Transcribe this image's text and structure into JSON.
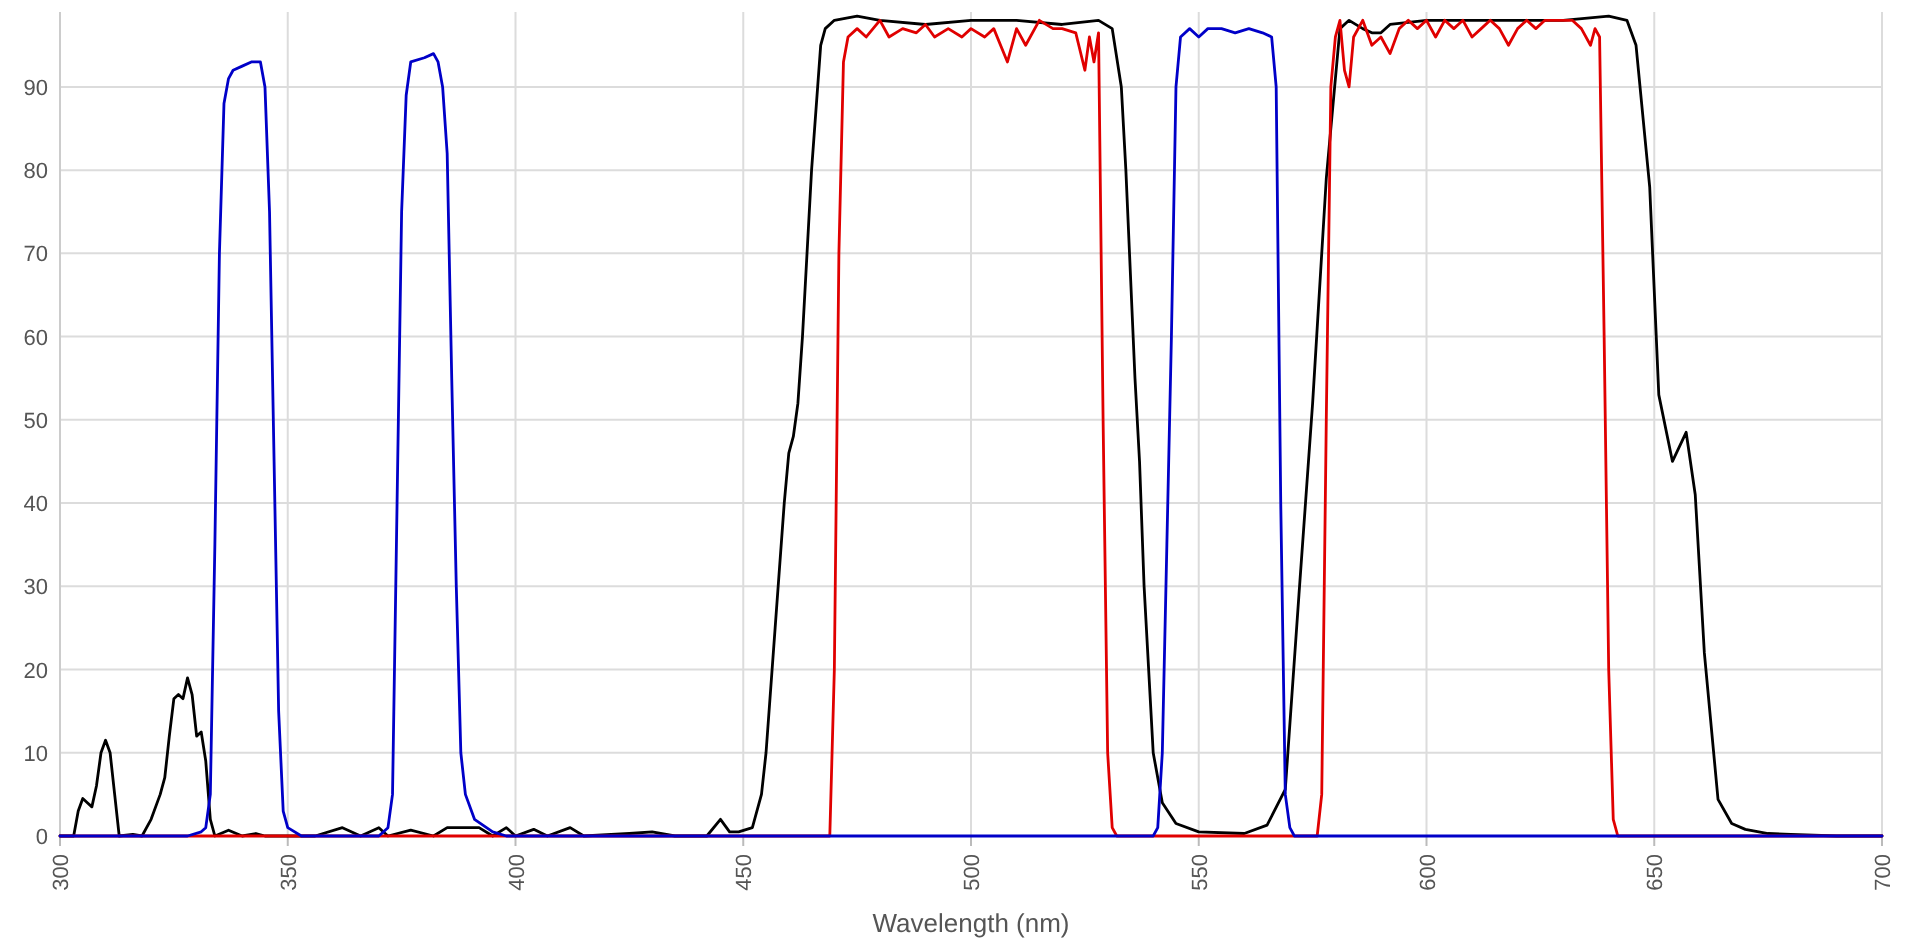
{
  "chart_data": {
    "type": "line",
    "xlabel": "Wavelength (nm)",
    "xlim": [
      300,
      700
    ],
    "xticks": [
      300,
      350,
      400,
      450,
      500,
      550,
      600,
      650,
      700
    ],
    "ylim": [
      0,
      99
    ],
    "yticks": [
      0,
      10,
      20,
      30,
      40,
      50,
      60,
      70,
      80,
      90
    ],
    "grid": true,
    "marker": "none",
    "line_style": "solid",
    "series": [
      {
        "color": "#000000",
        "x": [
          300,
          303,
          304,
          305,
          306,
          307,
          308,
          309,
          310,
          311,
          312,
          313,
          316,
          318,
          320,
          322,
          323,
          324,
          325,
          326,
          327,
          328,
          329,
          330,
          331,
          332,
          333,
          334,
          337,
          340,
          343,
          345,
          356,
          362,
          366,
          370,
          372,
          377,
          382,
          385,
          392,
          395,
          398,
          400,
          404,
          407,
          412,
          415,
          425,
          430,
          435,
          442,
          445,
          447,
          449,
          452,
          454,
          455,
          457,
          459,
          460,
          461,
          462,
          463,
          465,
          467,
          468,
          470,
          475,
          480,
          490,
          500,
          510,
          520,
          528,
          531,
          533,
          534,
          536,
          537,
          538,
          540,
          542,
          545,
          550,
          560,
          565,
          569,
          572,
          575,
          578,
          581,
          583,
          586,
          588,
          590,
          592,
          600,
          610,
          620,
          630,
          640,
          644,
          646,
          649,
          651,
          654,
          657,
          659,
          661,
          664,
          667,
          670,
          675,
          680,
          690,
          700
        ],
        "values": [
          0,
          0,
          3,
          4.5,
          4,
          3.5,
          6,
          10,
          11.5,
          10,
          5,
          0,
          0.2,
          0,
          2,
          5,
          7,
          12,
          16.5,
          17,
          16.5,
          19,
          17,
          12,
          12.5,
          9,
          2,
          0,
          0.7,
          0,
          0.3,
          0,
          0,
          1,
          0,
          1,
          0,
          0.7,
          0,
          1,
          1,
          0,
          1,
          0,
          0.8,
          0,
          1,
          0,
          0.3,
          0.5,
          0,
          0,
          2,
          0.5,
          0.5,
          1,
          5,
          10,
          25,
          40,
          46,
          48,
          52,
          60,
          80,
          95,
          97,
          98,
          98.5,
          98,
          97.5,
          98,
          98,
          97.5,
          98,
          97,
          90,
          80,
          55,
          45,
          30,
          10,
          4,
          1.5,
          0.5,
          0.3,
          1.3,
          5.6,
          29,
          52,
          79,
          97,
          98,
          97,
          96.5,
          96.5,
          97.5,
          98,
          98,
          98,
          98,
          98.5,
          98,
          95,
          78,
          53,
          45,
          48.5,
          41,
          22,
          4.4,
          1.5,
          0.8,
          0.3,
          0.2,
          0,
          0
        ]
      },
      {
        "color": "#e00000",
        "x": [
          300,
          468,
          469,
          470,
          471,
          472,
          473,
          475,
          477,
          480,
          482,
          485,
          488,
          490,
          492,
          495,
          498,
          500,
          503,
          505,
          508,
          510,
          512,
          515,
          518,
          520,
          523,
          525,
          526,
          527,
          528,
          529,
          530,
          531,
          532,
          576,
          577,
          578,
          579,
          580,
          581,
          582,
          583,
          584,
          586,
          588,
          590,
          592,
          594,
          596,
          598,
          600,
          602,
          604,
          606,
          608,
          610,
          612,
          614,
          616,
          618,
          620,
          622,
          624,
          626,
          628,
          630,
          632,
          634,
          636,
          637,
          638,
          639,
          640,
          641,
          642,
          700
        ],
        "values": [
          0,
          0,
          0,
          20,
          70,
          93,
          96,
          97,
          96,
          98,
          96,
          97,
          96.5,
          97.5,
          96,
          97,
          96,
          97,
          96,
          97,
          93,
          97,
          95,
          98,
          97,
          97,
          96.5,
          92,
          96,
          93,
          96.5,
          50,
          10,
          1,
          0,
          0,
          5,
          50,
          90,
          96,
          98,
          92,
          90,
          96,
          98,
          95,
          96,
          94,
          97,
          98,
          97,
          98,
          96,
          98,
          97,
          98,
          96,
          97,
          98,
          97,
          95,
          97,
          98,
          97,
          98,
          98,
          98,
          98,
          97,
          95,
          97,
          96,
          60,
          20,
          2,
          0,
          0
        ]
      },
      {
        "color": "#0000c8",
        "x": [
          300,
          328,
          331,
          332,
          333,
          334,
          335,
          336,
          337,
          338,
          340,
          342,
          344,
          345,
          346,
          347,
          348,
          349,
          350,
          353,
          370,
          372,
          373,
          374,
          375,
          376,
          377,
          380,
          382,
          383,
          384,
          385,
          386,
          387,
          388,
          389,
          391,
          395,
          398,
          540,
          541,
          542,
          543,
          544,
          545,
          546,
          548,
          550,
          552,
          555,
          558,
          561,
          564,
          566,
          567,
          568,
          569,
          570,
          571,
          700
        ],
        "values": [
          0,
          0,
          0.5,
          1,
          5,
          35,
          70,
          88,
          91,
          92,
          92.5,
          93,
          93,
          90,
          75,
          45,
          15,
          3,
          1,
          0,
          0,
          1,
          5,
          40,
          75,
          89,
          93,
          93.5,
          94,
          93,
          90,
          82,
          55,
          30,
          10,
          5,
          2,
          0.5,
          0,
          0,
          1,
          10,
          35,
          60,
          90,
          96,
          97,
          96,
          97,
          97,
          96.5,
          97,
          96.5,
          96,
          90,
          40,
          5,
          1,
          0,
          0
        ]
      }
    ]
  }
}
